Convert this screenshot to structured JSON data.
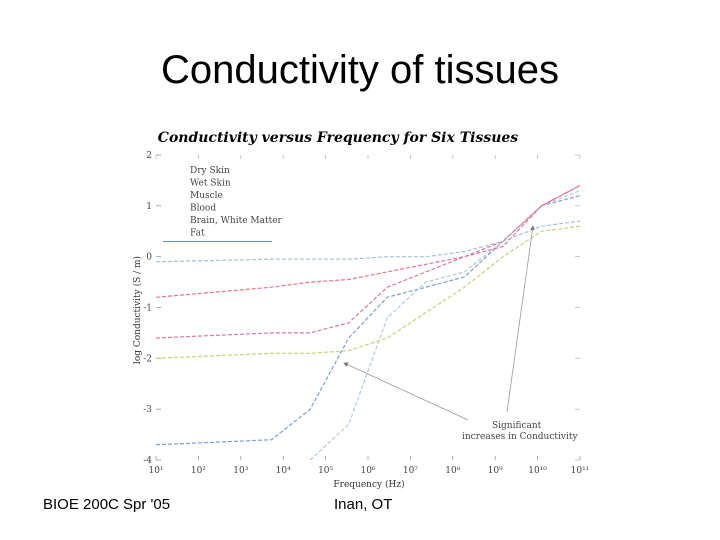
{
  "slide": {
    "title": "Conductivity of tissues",
    "footer_left": "BIOE 200C Spr '05",
    "footer_center": "Inan, OT"
  },
  "chart_data": {
    "type": "line",
    "title": "Conductivity versus Frequency for Six Tissues",
    "xlabel": "Frequency (Hz)",
    "ylabel": "log Conductivity (S / m)",
    "xscale": "log",
    "xlim": [
      1,
      100000000000.0
    ],
    "ylim": [
      -4,
      2
    ],
    "x_ticks": [
      "10¹",
      "10²",
      "10³",
      "10⁴",
      "10⁵",
      "10⁶",
      "10⁷",
      "10⁸",
      "10⁹",
      "10¹⁰",
      "10¹¹"
    ],
    "y_ticks": [
      "2",
      "1",
      "0",
      "-1",
      "-2",
      "-3",
      "-4"
    ],
    "grid": false,
    "legend_position": "top-left",
    "annotation": {
      "text_lines": [
        "Significant",
        "increases in Conductivity"
      ]
    },
    "series": [
      {
        "name": "Dry Skin",
        "color": "#7fa0c8",
        "points": [
          [
            1,
            -3.7
          ],
          [
            1000.0,
            -3.6
          ],
          [
            10000.0,
            -3.0
          ],
          [
            100000.0,
            -1.6
          ],
          [
            1000000.0,
            -0.8
          ],
          [
            10000000.0,
            -0.6
          ],
          [
            100000000.0,
            -0.4
          ],
          [
            1000000000.0,
            0.3
          ],
          [
            10000000000.0,
            1.0
          ],
          [
            100000000000.0,
            1.2
          ]
        ]
      },
      {
        "name": "Wet Skin",
        "color": "#b8c8d8",
        "points": [
          [
            10000.0,
            -4.0
          ],
          [
            100000.0,
            -3.3
          ],
          [
            1000000.0,
            -1.2
          ],
          [
            10000000.0,
            -0.5
          ],
          [
            100000000.0,
            -0.3
          ],
          [
            1000000000.0,
            0.3
          ],
          [
            10000000000.0,
            1.0
          ],
          [
            100000000000.0,
            1.3
          ]
        ]
      },
      {
        "name": "Muscle",
        "color": "#d97aa0",
        "points": [
          [
            1,
            -1.6
          ],
          [
            1000.0,
            -1.5
          ],
          [
            10000.0,
            -1.5
          ],
          [
            100000.0,
            -1.3
          ],
          [
            1000000.0,
            -0.6
          ],
          [
            10000000.0,
            -0.3
          ],
          [
            100000000.0,
            0.0
          ],
          [
            1000000000.0,
            0.3
          ],
          [
            10000000000.0,
            1.0
          ],
          [
            100000000000.0,
            1.4
          ]
        ]
      },
      {
        "name": "Blood",
        "color": "#e8748a",
        "points": [
          [
            1,
            -0.8
          ],
          [
            1000.0,
            -0.6
          ],
          [
            10000.0,
            -0.5
          ],
          [
            100000.0,
            -0.45
          ],
          [
            1000000.0,
            -0.3
          ],
          [
            10000000.0,
            -0.15
          ],
          [
            100000000.0,
            0.0
          ],
          [
            1000000000.0,
            0.2
          ],
          [
            10000000000.0,
            1.0
          ],
          [
            100000000000.0,
            1.4
          ]
        ]
      },
      {
        "name": "Brain, White Matter",
        "color": "#ccd07a",
        "points": [
          [
            1,
            -2.0
          ],
          [
            1000.0,
            -1.9
          ],
          [
            10000.0,
            -1.9
          ],
          [
            100000.0,
            -1.85
          ],
          [
            1000000.0,
            -1.6
          ],
          [
            10000000.0,
            -1.1
          ],
          [
            100000000.0,
            -0.6
          ],
          [
            1000000000.0,
            0.0
          ],
          [
            10000000000.0,
            0.5
          ],
          [
            100000000000.0,
            0.6
          ]
        ]
      },
      {
        "name": "Fat",
        "color": "#a8c0d8",
        "points": [
          [
            1,
            -0.1
          ],
          [
            1000.0,
            -0.05
          ],
          [
            100000.0,
            -0.05
          ],
          [
            1000000.0,
            0.0
          ],
          [
            10000000.0,
            0.0
          ],
          [
            100000000.0,
            0.1
          ],
          [
            1000000000.0,
            0.3
          ],
          [
            10000000000.0,
            0.6
          ],
          [
            100000000000.0,
            0.7
          ]
        ]
      }
    ]
  }
}
